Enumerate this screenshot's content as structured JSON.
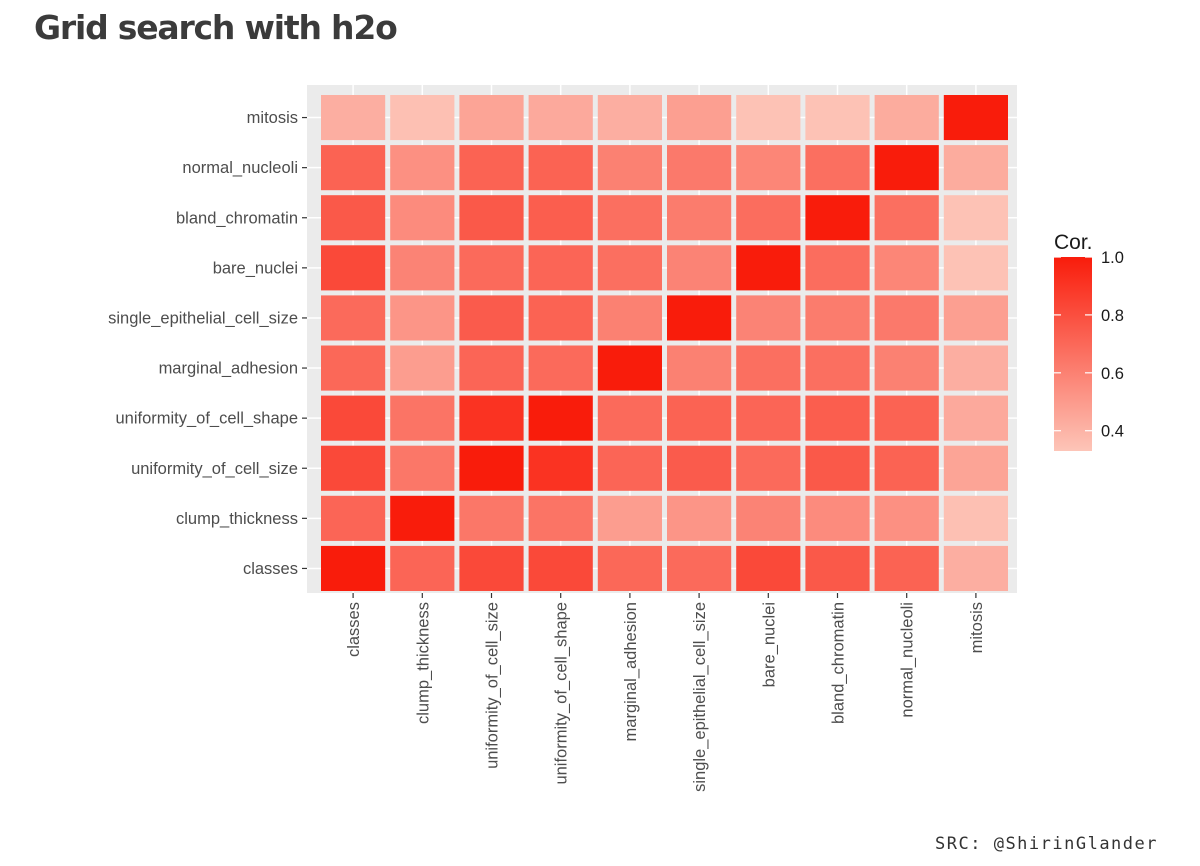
{
  "title": "Grid search with h2o",
  "source": "SRC: @ShirinGlander",
  "chart_data": {
    "type": "heatmap",
    "x_categories": [
      "classes",
      "clump_thickness",
      "uniformity_of_cell_size",
      "uniformity_of_cell_shape",
      "marginal_adhesion",
      "single_epithelial_cell_size",
      "bare_nuclei",
      "bland_chromatin",
      "normal_nucleoli",
      "mitosis"
    ],
    "y_categories": [
      "classes",
      "clump_thickness",
      "uniformity_of_cell_size",
      "uniformity_of_cell_shape",
      "marginal_adhesion",
      "single_epithelial_cell_size",
      "bare_nuclei",
      "bland_chromatin",
      "normal_nucleoli",
      "mitosis"
    ],
    "values": [
      [
        1.0,
        0.71,
        0.82,
        0.82,
        0.7,
        0.69,
        0.82,
        0.76,
        0.72,
        0.42
      ],
      [
        0.71,
        1.0,
        0.64,
        0.65,
        0.49,
        0.52,
        0.59,
        0.56,
        0.54,
        0.35
      ],
      [
        0.82,
        0.64,
        1.0,
        0.91,
        0.71,
        0.75,
        0.69,
        0.76,
        0.72,
        0.46
      ],
      [
        0.82,
        0.65,
        0.91,
        1.0,
        0.69,
        0.72,
        0.71,
        0.74,
        0.72,
        0.44
      ],
      [
        0.7,
        0.49,
        0.71,
        0.69,
        1.0,
        0.6,
        0.67,
        0.67,
        0.6,
        0.42
      ],
      [
        0.69,
        0.52,
        0.75,
        0.72,
        0.6,
        1.0,
        0.59,
        0.62,
        0.63,
        0.48
      ],
      [
        0.82,
        0.59,
        0.69,
        0.71,
        0.67,
        0.59,
        1.0,
        0.68,
        0.58,
        0.34
      ],
      [
        0.76,
        0.56,
        0.76,
        0.74,
        0.67,
        0.62,
        0.68,
        1.0,
        0.67,
        0.34
      ],
      [
        0.72,
        0.54,
        0.72,
        0.72,
        0.6,
        0.63,
        0.58,
        0.67,
        1.0,
        0.43
      ],
      [
        0.42,
        0.35,
        0.46,
        0.44,
        0.42,
        0.48,
        0.34,
        0.34,
        0.43,
        1.0
      ]
    ],
    "legend": {
      "title": "Cor.",
      "ticks": [
        1.0,
        0.8,
        0.6,
        0.4
      ],
      "tick_labels": [
        "1.0",
        "0.8",
        "0.6",
        "0.4"
      ],
      "min": 0.33,
      "max": 1.0,
      "placement": "right"
    },
    "color_low": "#fdc5b8",
    "color_high": "#f91c0b",
    "panel_background": "#ebebeb",
    "grid": true
  }
}
